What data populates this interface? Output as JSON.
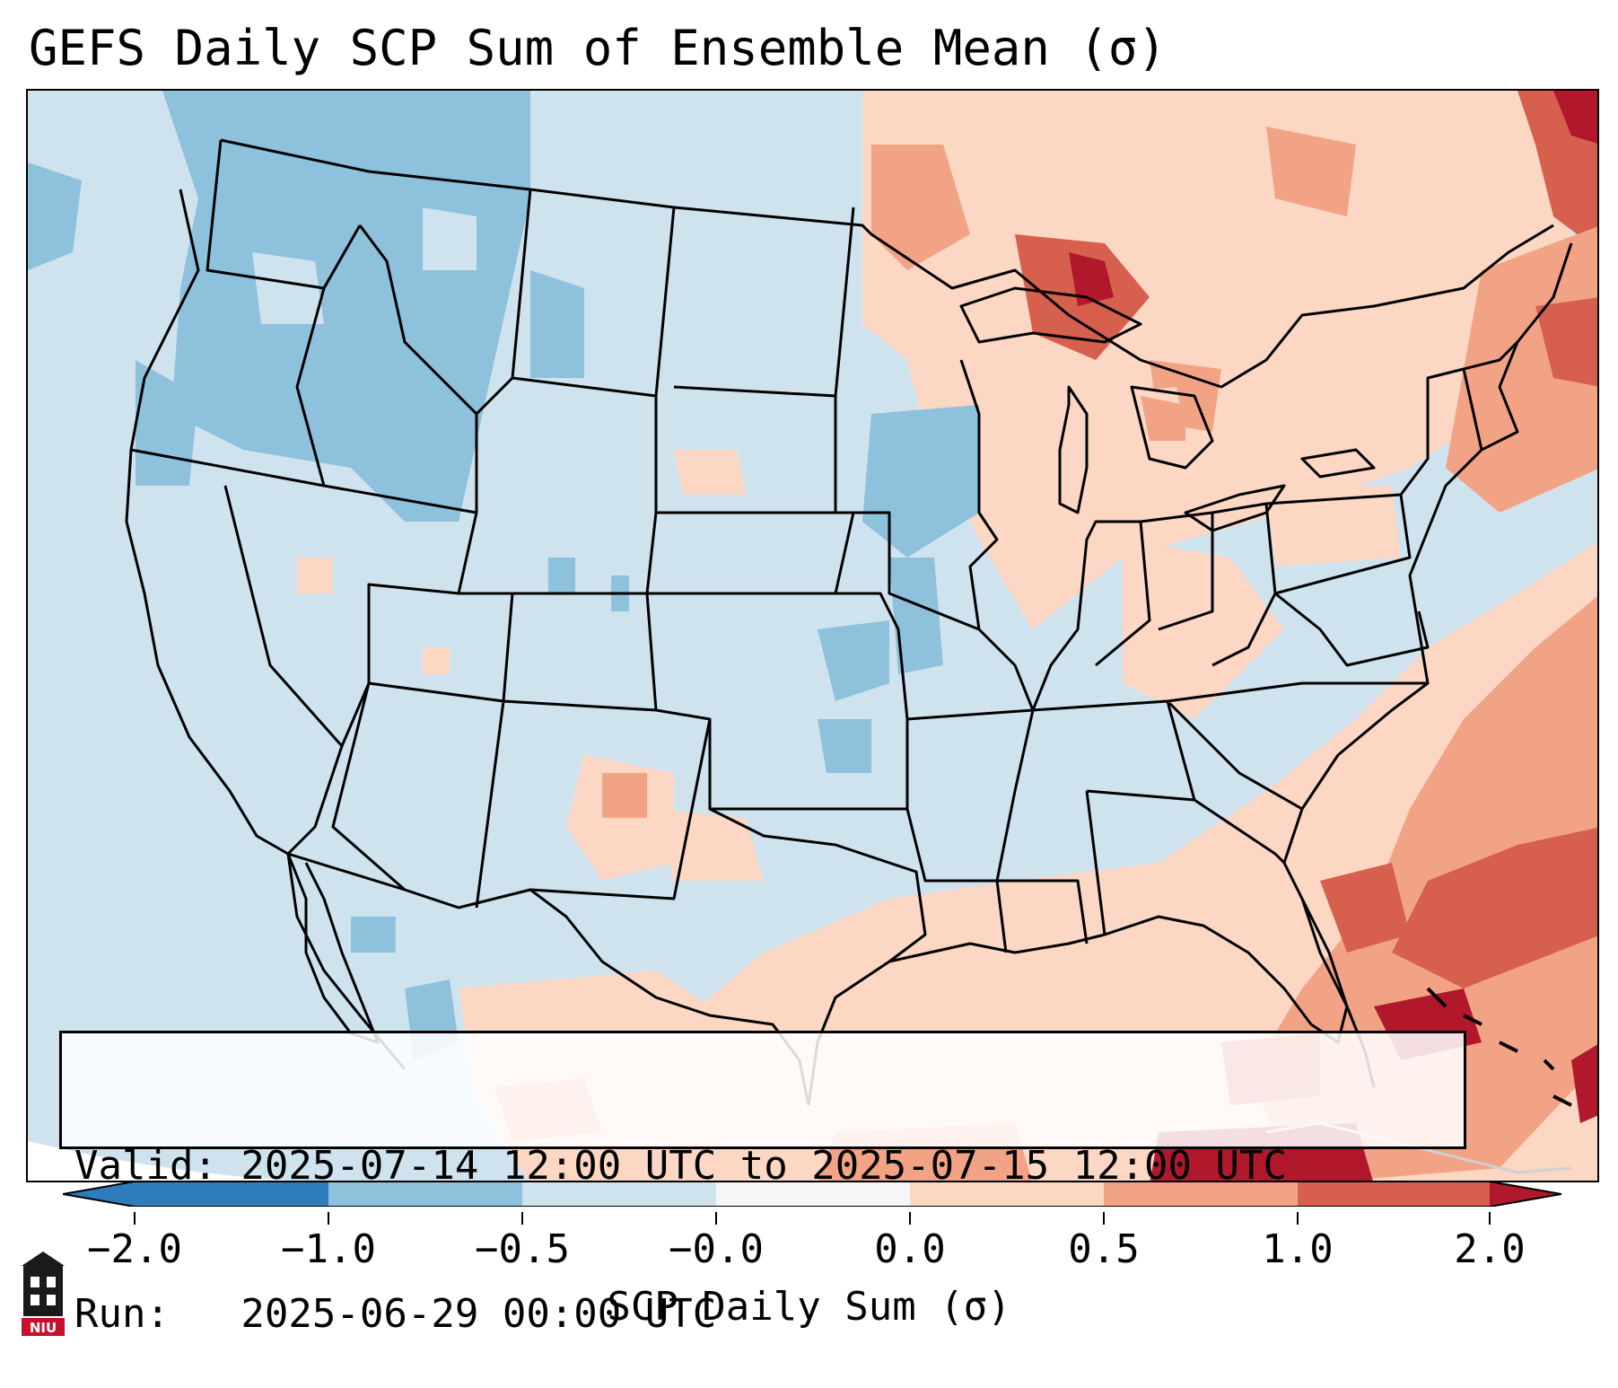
{
  "title": "GEFS Daily SCP Sum of Ensemble Mean (σ)",
  "info": {
    "valid_line": "Valid: 2025-07-14 12:00 UTC to 2025-07-15 12:00 UTC",
    "run_line": "Run:   2025-06-29 00:00 UTC"
  },
  "colorbar": {
    "label": "SCP Daily Sum (σ)",
    "ticks": [
      "−2.0",
      "−1.0",
      "−0.5",
      "−0.0",
      "0.0",
      "0.5",
      "1.0",
      "2.0"
    ],
    "colors": [
      "#2e7cbb",
      "#8dc1dc",
      "#cfe3ef",
      "#f4f6f8",
      "#fbd7c4",
      "#f3a385",
      "#d6604d",
      "#b2182b"
    ]
  },
  "logo": {
    "text": "NIU"
  },
  "legend_colors": {
    "ocean": "#cfe3ef",
    "light_blue": "#cfe3ef",
    "mid_blue": "#8dc1dc",
    "light_red": "#fbd7c4",
    "mid_red": "#f3a385",
    "dark_red": "#d6604d",
    "darkest_red": "#b2182b"
  }
}
